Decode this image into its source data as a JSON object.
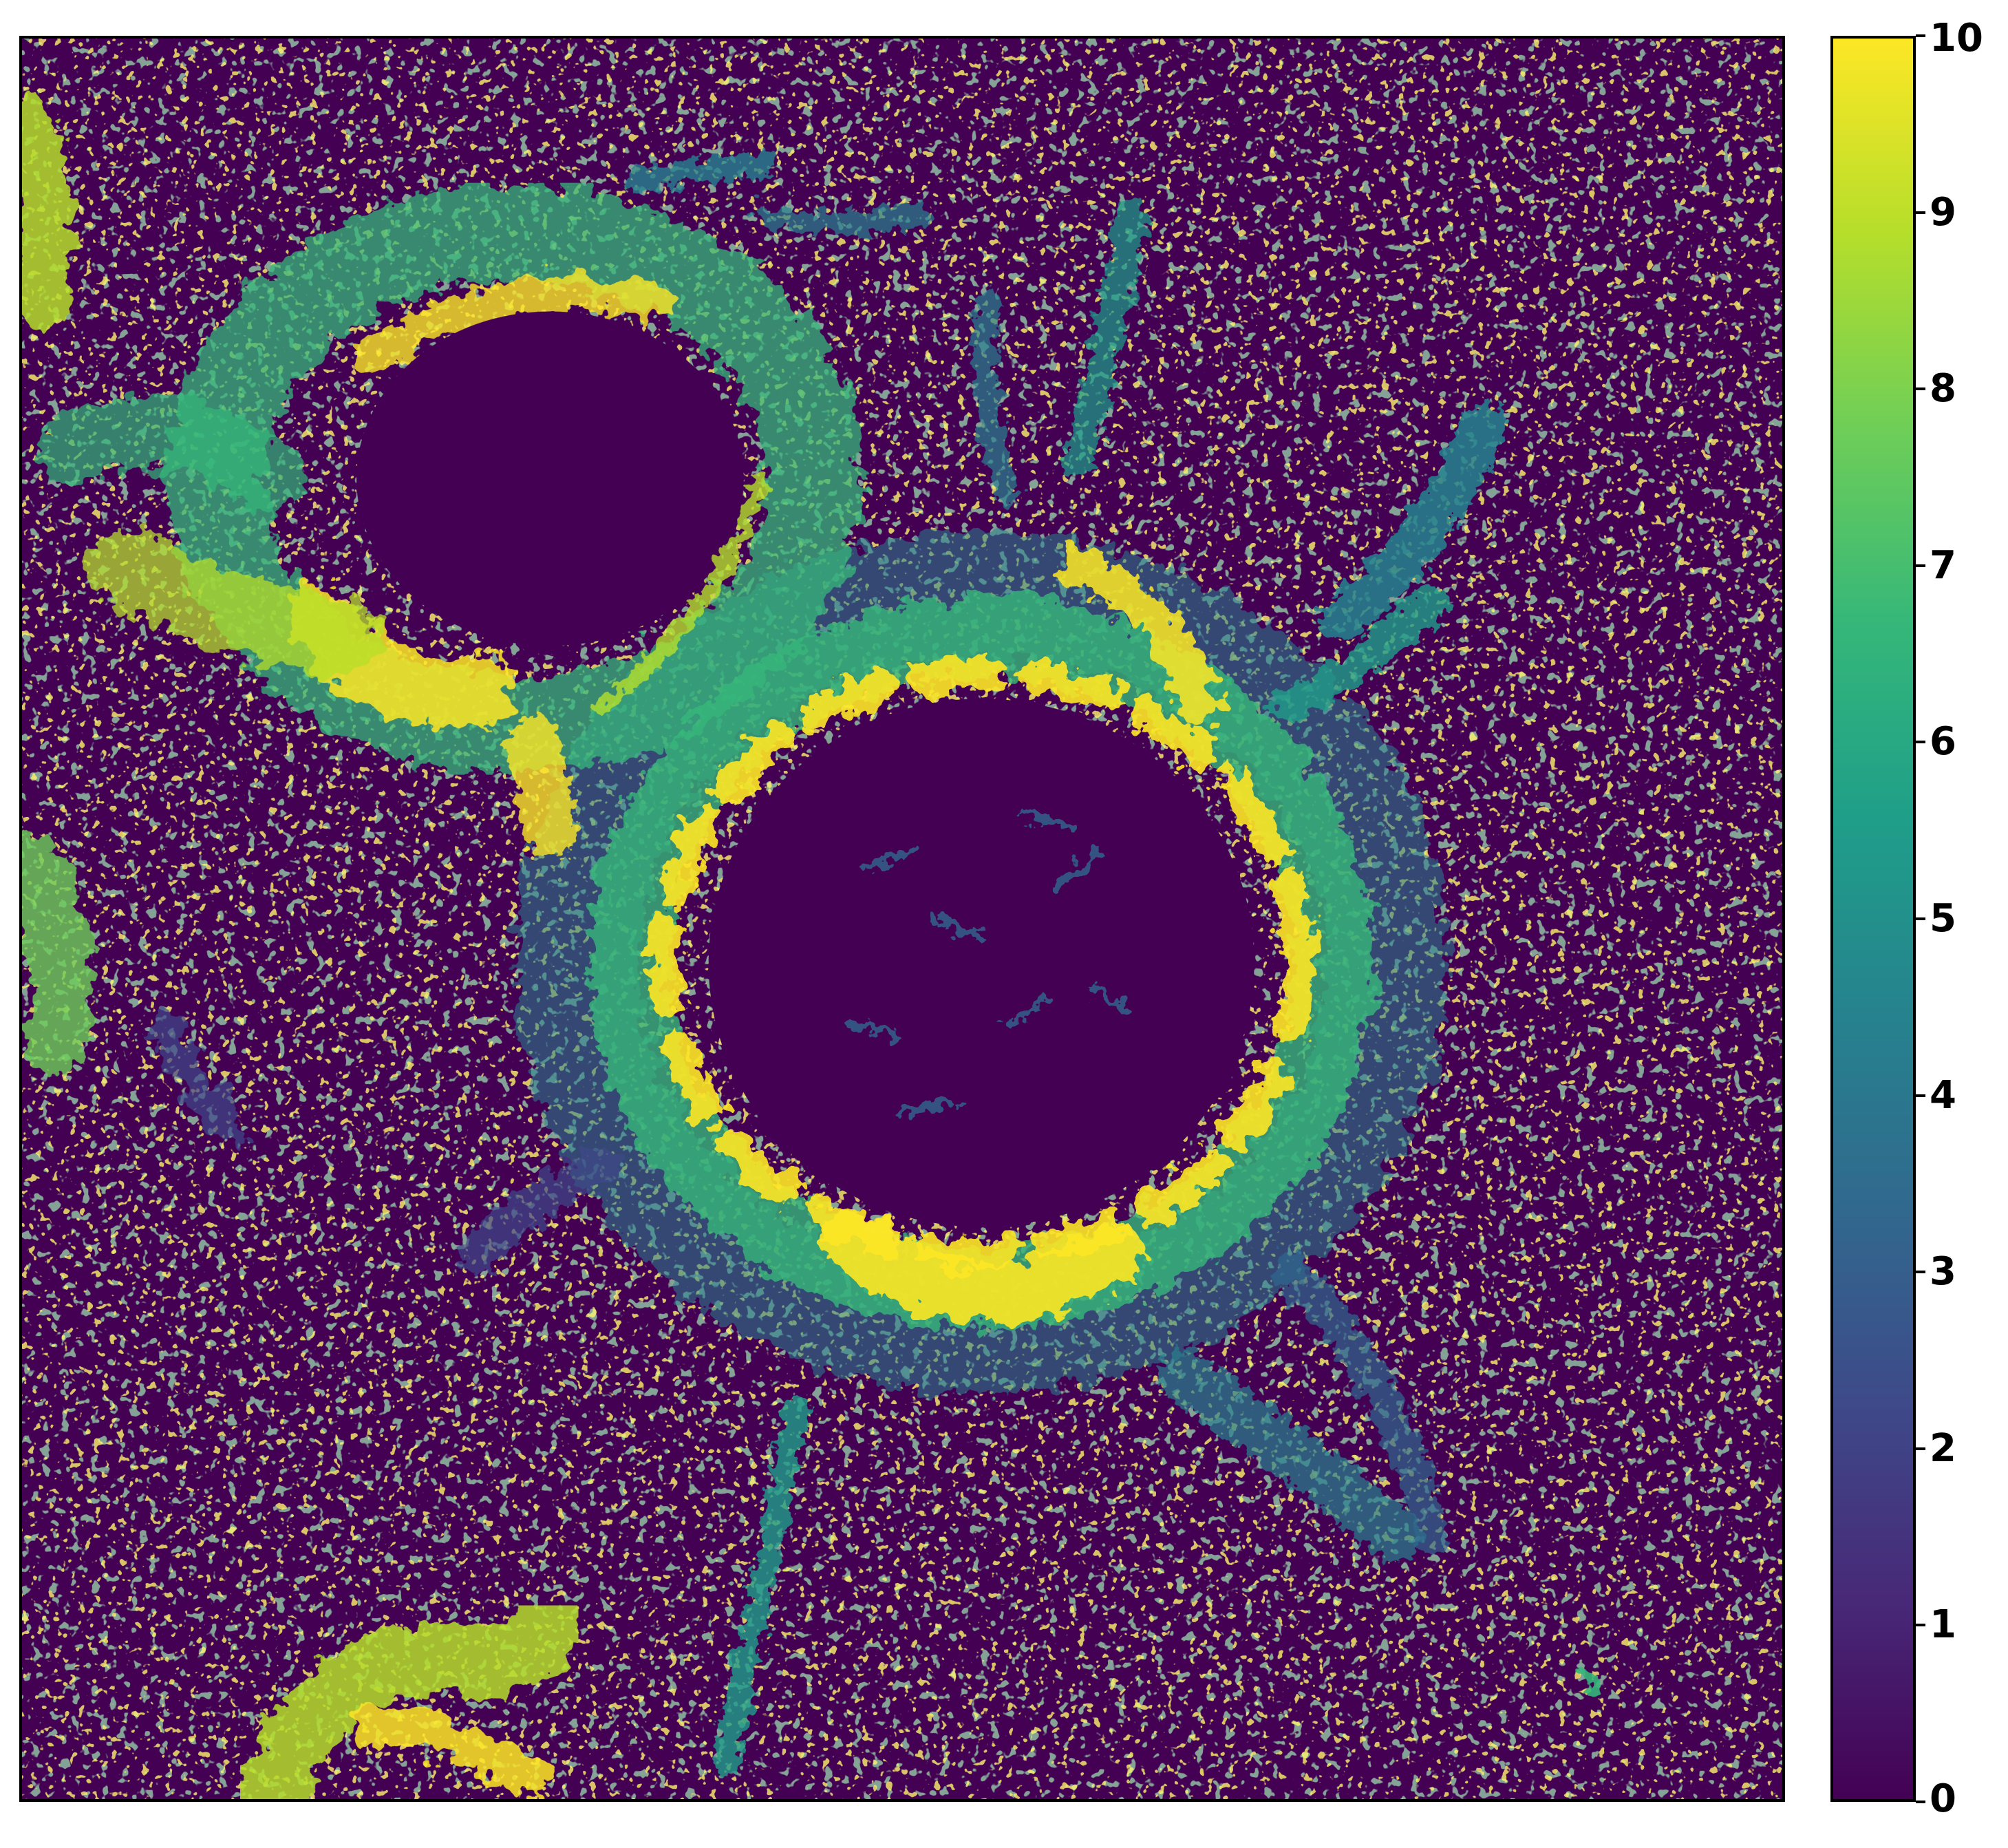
{
  "image": {
    "description_name": "fluorescence-micrograph-mitochondria",
    "colormap": "viridis",
    "background_color": "#440154"
  },
  "colorbar": {
    "min": 0,
    "max": 10,
    "colormap": "viridis",
    "gradient_stops": [
      "#440154",
      "#482878",
      "#3e4989",
      "#31688e",
      "#26828e",
      "#1f9e89",
      "#35b779",
      "#6ece58",
      "#b5de2b",
      "#fde725"
    ],
    "ticks": [
      {
        "value": 0,
        "label": "0"
      },
      {
        "value": 1,
        "label": "1"
      },
      {
        "value": 2,
        "label": "2"
      },
      {
        "value": 3,
        "label": "3"
      },
      {
        "value": 4,
        "label": "4"
      },
      {
        "value": 5,
        "label": "5"
      },
      {
        "value": 6,
        "label": "6"
      },
      {
        "value": 7,
        "label": "7"
      },
      {
        "value": 8,
        "label": "8"
      },
      {
        "value": 9,
        "label": "9"
      },
      {
        "value": 10,
        "label": "10"
      }
    ]
  }
}
